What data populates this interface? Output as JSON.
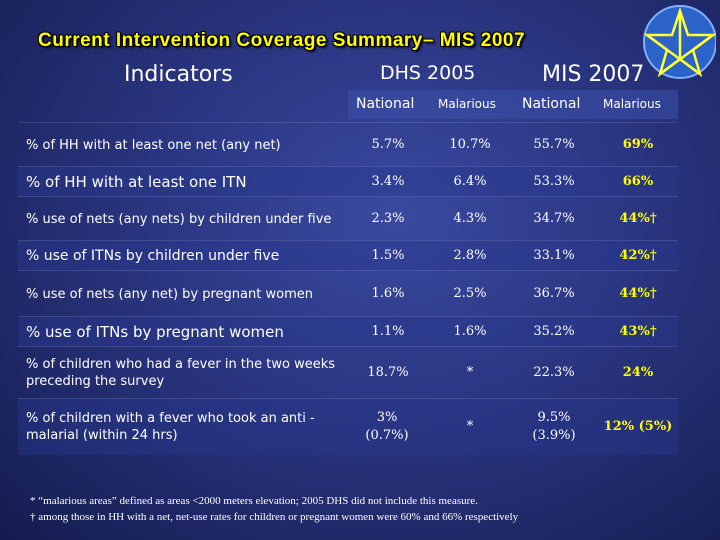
{
  "title": "Current Intervention Coverage Summary– MIS 2007",
  "headers": {
    "indicators": "Indicators",
    "dhs": "DHS 2005",
    "mis": "MIS 2007",
    "national": "National",
    "malarious": "Malarious"
  },
  "rows": [
    {
      "indicator": "% of HH with at least one net (any net)",
      "dhs_national": "5.7%",
      "dhs_malarious": "10.7%",
      "mis_national": "55.7%",
      "mis_malarious": "69%"
    },
    {
      "indicator": "% of HH with at least one ITN",
      "dhs_national": "3.4%",
      "dhs_malarious": "6.4%",
      "mis_national": "53.3%",
      "mis_malarious": "66%"
    },
    {
      "indicator": "% use of nets (any nets) by children under five",
      "dhs_national": "2.3%",
      "dhs_malarious": "4.3%",
      "mis_national": "34.7%",
      "mis_malarious": "44%†"
    },
    {
      "indicator": "% use of ITNs by children under five",
      "dhs_national": "1.5%",
      "dhs_malarious": "2.8%",
      "mis_national": "33.1%",
      "mis_malarious": "42%†"
    },
    {
      "indicator": "% use of nets (any net) by pregnant women",
      "dhs_national": "1.6%",
      "dhs_malarious": "2.5%",
      "mis_national": "36.7%",
      "mis_malarious": "44%†"
    },
    {
      "indicator": "% use of ITNs by pregnant women",
      "dhs_national": "1.1%",
      "dhs_malarious": "1.6%",
      "mis_national": "35.2%",
      "mis_malarious": "43%†"
    },
    {
      "indicator": "% of children who had a fever in the two weeks preceding the survey",
      "dhs_national": "18.7%",
      "dhs_malarious": "*",
      "mis_national": "22.3%",
      "mis_malarious": "24%"
    },
    {
      "indicator": "% of children with a fever who took an anti -malarial (within 24 hrs)",
      "dhs_national": "3% (0.7%)",
      "dhs_malarious": "*",
      "mis_national": "9.5% (3.9%)",
      "mis_malarious": "12% (5%)"
    }
  ],
  "footnotes": [
    "* “malarious areas” defined as areas <2000 meters elevation; 2005 DHS did not include this measure.",
    "† among those in HH with a net, net-use rates for children or pregnant women were 60% and 66% respectively"
  ],
  "colors": {
    "title": "#ffff00",
    "background": "#2a3580",
    "highlight": "#ffff00"
  }
}
